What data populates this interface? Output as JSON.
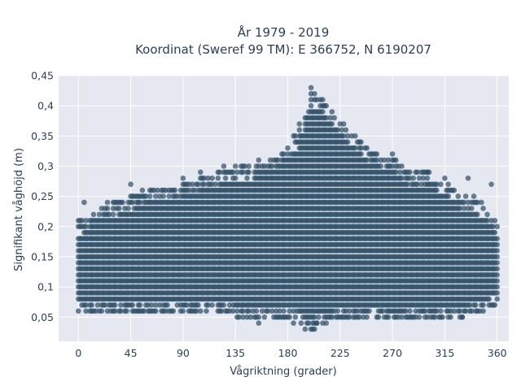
{
  "chart_data": {
    "type": "scatter",
    "title": "År 1979 - 2019",
    "subtitle": "Koordinat (Sweref 99 TM): E 366752, N 6190207",
    "xlabel": "Vågriktning (grader)",
    "ylabel": "Signifikant våghöjd (m)",
    "xlim": [
      -17,
      370
    ],
    "ylim": [
      0.01,
      0.45
    ],
    "x_ticks": [
      0,
      45,
      90,
      135,
      180,
      225,
      270,
      315,
      360
    ],
    "x_tick_labels": [
      "0",
      "45",
      "90",
      "135",
      "180",
      "225",
      "270",
      "315",
      "360"
    ],
    "y_ticks": [
      0.05,
      0.1,
      0.15,
      0.2,
      0.25,
      0.3,
      0.35,
      0.4,
      0.45
    ],
    "y_tick_labels": [
      "0,05",
      "0,1",
      "0,15",
      "0,2",
      "0,25",
      "0,3",
      "0,35",
      "0,4",
      "0,45"
    ],
    "grid": true,
    "legend": false,
    "marker_color": "#2f5068",
    "plot_bgcolor": "#e5e8f1",
    "x_step_degrees": 5,
    "y_step_m": 0.01,
    "envelope": {
      "x": [
        0,
        10,
        20,
        30,
        45,
        60,
        75,
        90,
        105,
        120,
        135,
        150,
        165,
        180,
        190,
        200,
        210,
        225,
        240,
        255,
        270,
        285,
        300,
        315,
        330,
        345,
        360
      ],
      "y_max": [
        0.21,
        0.22,
        0.23,
        0.24,
        0.25,
        0.26,
        0.26,
        0.27,
        0.28,
        0.29,
        0.3,
        0.3,
        0.31,
        0.33,
        0.37,
        0.42,
        0.4,
        0.37,
        0.34,
        0.32,
        0.31,
        0.29,
        0.29,
        0.27,
        0.25,
        0.24,
        0.2
      ],
      "y_min": [
        0.06,
        0.06,
        0.06,
        0.06,
        0.06,
        0.06,
        0.06,
        0.06,
        0.06,
        0.06,
        0.05,
        0.05,
        0.05,
        0.05,
        0.04,
        0.03,
        0.04,
        0.05,
        0.05,
        0.05,
        0.05,
        0.05,
        0.05,
        0.05,
        0.05,
        0.06,
        0.07
      ]
    },
    "outliers": [
      {
        "x": 5,
        "y": 0.24
      },
      {
        "x": 25,
        "y": 0.24
      },
      {
        "x": 45,
        "y": 0.27
      },
      {
        "x": 55,
        "y": 0.26
      },
      {
        "x": 90,
        "y": 0.28
      },
      {
        "x": 105,
        "y": 0.29
      },
      {
        "x": 125,
        "y": 0.3
      },
      {
        "x": 155,
        "y": 0.31
      },
      {
        "x": 200,
        "y": 0.43
      },
      {
        "x": 205,
        "y": 0.41
      },
      {
        "x": 210,
        "y": 0.41
      },
      {
        "x": 270,
        "y": 0.32
      },
      {
        "x": 300,
        "y": 0.29
      },
      {
        "x": 315,
        "y": 0.28
      },
      {
        "x": 335,
        "y": 0.28
      },
      {
        "x": 340,
        "y": 0.25
      },
      {
        "x": 355,
        "y": 0.27
      },
      {
        "x": 360,
        "y": 0.2
      },
      {
        "x": 155,
        "y": 0.04
      },
      {
        "x": 185,
        "y": 0.04
      },
      {
        "x": 195,
        "y": 0.03
      },
      {
        "x": 200,
        "y": 0.03
      },
      {
        "x": 205,
        "y": 0.04
      },
      {
        "x": 240,
        "y": 0.05
      },
      {
        "x": 265,
        "y": 0.05
      },
      {
        "x": 330,
        "y": 0.05
      }
    ]
  }
}
